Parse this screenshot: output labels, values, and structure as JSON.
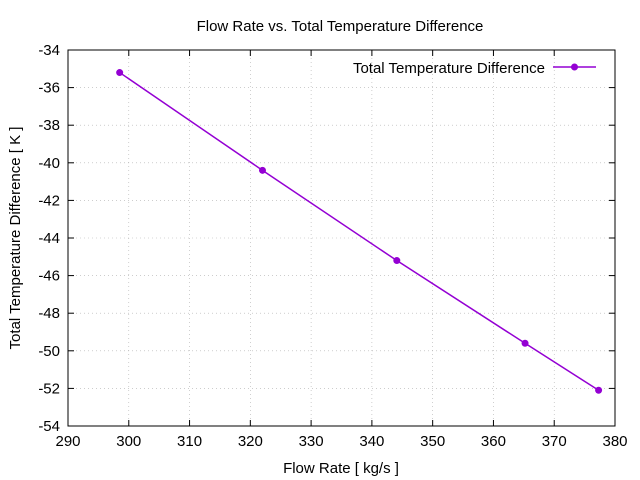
{
  "chart_data": {
    "type": "line",
    "title": "Flow Rate vs. Total Temperature Difference",
    "xlabel": "Flow Rate [ kg/s ]",
    "ylabel": "Total Temperature Difference [ K ]",
    "xlim": [
      290,
      380
    ],
    "ylim": [
      -54,
      -34
    ],
    "xticks": [
      290,
      300,
      310,
      320,
      330,
      340,
      350,
      360,
      370,
      380
    ],
    "yticks": [
      -54,
      -52,
      -50,
      -48,
      -46,
      -44,
      -42,
      -40,
      -38,
      -36,
      -34
    ],
    "grid": true,
    "legend_position": "top-right",
    "series": [
      {
        "name": "Total Temperature Difference",
        "color": "#9400d3",
        "marker": "circle",
        "x": [
          298.5,
          322.0,
          344.1,
          365.2,
          377.3
        ],
        "y": [
          -35.2,
          -40.4,
          -45.2,
          -49.6,
          -52.1
        ]
      }
    ]
  }
}
